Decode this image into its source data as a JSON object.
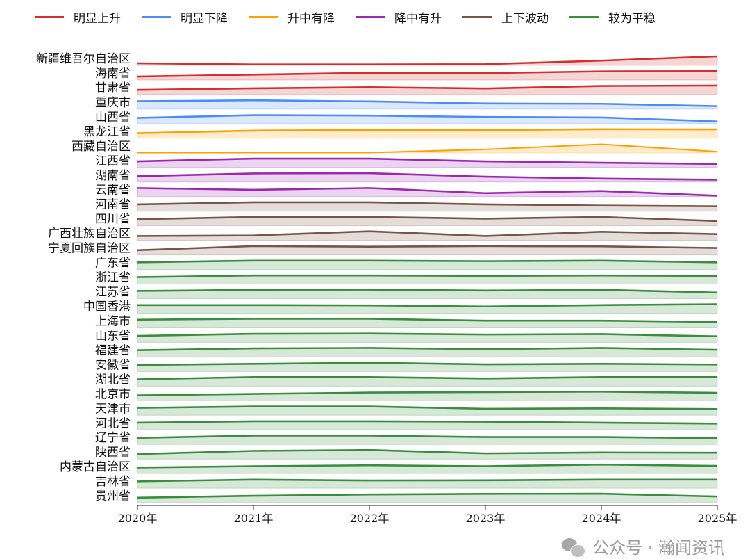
{
  "chart_data": {
    "type": "ridgeline-area",
    "x": [
      "2020年",
      "2021年",
      "2022年",
      "2023年",
      "2024年",
      "2025年"
    ],
    "legend": [
      {
        "name": "明显上升",
        "color": "#d32f2f"
      },
      {
        "name": "明显下降",
        "color": "#4a8df8"
      },
      {
        "name": "升中有降",
        "color": "#ffa000"
      },
      {
        "name": "降中有升",
        "color": "#9c27b0"
      },
      {
        "name": "上下波动",
        "color": "#795548"
      },
      {
        "name": "较为平稳",
        "color": "#388e3c"
      }
    ],
    "legend_placement": "top",
    "value_note_scale": "relative level within each row, 0-1",
    "series": [
      {
        "name": "新疆维吾尔自治区",
        "group": 0,
        "values": [
          0.23,
          0.1,
          0.1,
          0.13,
          0.52,
          1.0
        ]
      },
      {
        "name": "海南省",
        "group": 0,
        "values": [
          0.38,
          0.59,
          0.79,
          0.75,
          0.95,
          0.98
        ]
      },
      {
        "name": "甘肃省",
        "group": 0,
        "values": [
          0.52,
          0.69,
          0.82,
          0.67,
          0.95,
          1.0
        ]
      },
      {
        "name": "重庆市",
        "group": 1,
        "values": [
          0.87,
          0.98,
          0.85,
          0.62,
          0.59,
          0.33
        ]
      },
      {
        "name": "山西省",
        "group": 1,
        "values": [
          0.64,
          0.95,
          0.9,
          0.75,
          0.69,
          0.25
        ]
      },
      {
        "name": "黑龙江省",
        "group": 2,
        "values": [
          0.56,
          0.85,
          0.92,
          0.9,
          1.0,
          0.98
        ]
      },
      {
        "name": "西藏自治区",
        "group": 2,
        "values": [
          0.02,
          0.02,
          0.02,
          0.38,
          0.95,
          0.13
        ]
      },
      {
        "name": "江西省",
        "group": 3,
        "values": [
          0.67,
          0.98,
          0.98,
          0.67,
          0.52,
          0.38
        ]
      },
      {
        "name": "湖南省",
        "group": 3,
        "values": [
          0.64,
          0.95,
          0.98,
          0.59,
          0.38,
          0.25
        ]
      },
      {
        "name": "云南省",
        "group": 3,
        "values": [
          0.95,
          0.75,
          0.95,
          0.38,
          0.62,
          0.1
        ]
      },
      {
        "name": "河南省",
        "group": 4,
        "values": [
          0.75,
          0.98,
          0.98,
          0.75,
          0.62,
          0.54
        ]
      },
      {
        "name": "四川省",
        "group": 4,
        "values": [
          0.72,
          0.98,
          0.98,
          0.79,
          0.98,
          0.52
        ]
      },
      {
        "name": "广西壮族自治区",
        "group": 4,
        "values": [
          0.48,
          0.54,
          1.0,
          0.48,
          0.95,
          0.69
        ]
      },
      {
        "name": "宁夏回族自治区",
        "group": 4,
        "values": [
          0.52,
          0.98,
          0.92,
          0.98,
          0.95,
          0.77
        ]
      },
      {
        "name": "广东省",
        "group": 5,
        "values": [
          0.79,
          0.98,
          0.98,
          0.92,
          0.98,
          0.79
        ]
      },
      {
        "name": "浙江省",
        "group": 5,
        "values": [
          0.77,
          0.95,
          0.95,
          0.9,
          0.95,
          0.9
        ]
      },
      {
        "name": "江苏省",
        "group": 5,
        "values": [
          0.85,
          0.98,
          1.0,
          0.9,
          0.98,
          0.67
        ]
      },
      {
        "name": "中国香港",
        "group": 5,
        "values": [
          0.9,
          0.9,
          0.87,
          0.75,
          0.9,
          1.0
        ]
      },
      {
        "name": "上海市",
        "group": 5,
        "values": [
          0.9,
          1.0,
          1.0,
          0.79,
          0.79,
          0.64
        ]
      },
      {
        "name": "山东省",
        "group": 5,
        "values": [
          0.72,
          0.95,
          0.98,
          0.87,
          0.92,
          0.67
        ]
      },
      {
        "name": "福建省",
        "group": 5,
        "values": [
          0.75,
          0.95,
          1.0,
          0.85,
          1.0,
          0.79
        ]
      },
      {
        "name": "安徽省",
        "group": 5,
        "values": [
          0.72,
          0.85,
          0.98,
          0.79,
          0.85,
          0.77
        ]
      },
      {
        "name": "湖北省",
        "group": 5,
        "values": [
          0.75,
          1.0,
          1.0,
          0.85,
          1.0,
          1.0
        ]
      },
      {
        "name": "北京市",
        "group": 5,
        "values": [
          0.59,
          0.75,
          0.9,
          0.95,
          1.0,
          0.87
        ]
      },
      {
        "name": "天津市",
        "group": 5,
        "values": [
          0.82,
          0.98,
          0.98,
          0.72,
          0.77,
          0.69
        ]
      },
      {
        "name": "河北省",
        "group": 5,
        "values": [
          0.79,
          0.95,
          0.95,
          0.9,
          0.79,
          0.69
        ]
      },
      {
        "name": "辽宁省",
        "group": 5,
        "values": [
          0.72,
          0.98,
          0.98,
          0.82,
          0.82,
          0.69
        ]
      },
      {
        "name": "陕西省",
        "group": 5,
        "values": [
          0.54,
          0.9,
          1.0,
          0.62,
          0.72,
          0.69
        ]
      },
      {
        "name": "内蒙古自治区",
        "group": 5,
        "values": [
          0.67,
          0.82,
          0.92,
          0.82,
          1.0,
          0.85
        ]
      },
      {
        "name": "吉林省",
        "group": 5,
        "values": [
          0.75,
          0.95,
          0.85,
          0.87,
          0.95,
          0.95
        ]
      },
      {
        "name": "贵州省",
        "group": 5,
        "values": [
          0.56,
          0.77,
          0.92,
          0.98,
          1.0,
          0.69
        ]
      }
    ]
  },
  "watermark": {
    "text": "公众号 · 瀚闻资讯",
    "icon": "wechat-icon"
  }
}
